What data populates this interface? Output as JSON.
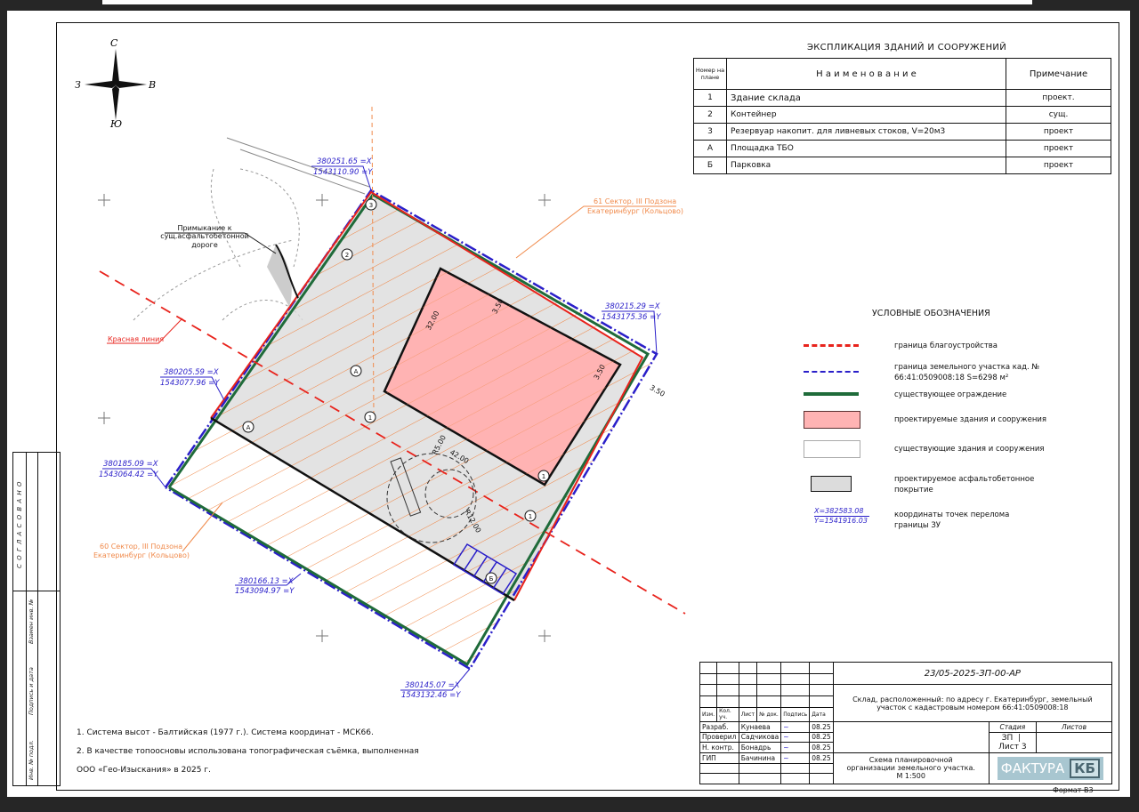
{
  "compass": {
    "north": "С",
    "south": "Ю",
    "west": "З",
    "east": "В"
  },
  "explication": {
    "title": "ЭКСПЛИКАЦИЯ ЗДАНИЙ И СООРУЖЕНИЙ",
    "headers": [
      "Номер на плане",
      "Н а и м е н о в а н и е",
      "Примечание"
    ],
    "rows": [
      {
        "num": "1",
        "name": "Здание склада",
        "note": "проект."
      },
      {
        "num": "2",
        "name": "Контейнер",
        "note": "сущ."
      },
      {
        "num": "3",
        "name": "Резервуар накопит. для ливневых стоков, V=20м3",
        "note": "проект"
      },
      {
        "num": "А",
        "name": "Площадка ТБО",
        "note": "проект"
      },
      {
        "num": "Б",
        "name": "Парковка",
        "note": "проект"
      }
    ]
  },
  "legend": {
    "title": "УСЛОВНЫЕ ОБОЗНАЧЕНИЯ",
    "items": [
      {
        "label": "граница благоустройства",
        "color": "#e8231c"
      },
      {
        "label": "граница земельного участка кад. № 66:41:0509008:18 S=6298 м²",
        "color": "#2a1fc9"
      },
      {
        "label": "существующее ограждение",
        "color": "#1f6b3a"
      },
      {
        "label": "проектируемые здания и сооружения",
        "color": "#ffb3b3"
      },
      {
        "label": "существующие здания и сооружения",
        "color": "#ffffff"
      },
      {
        "label": "проектируемое асфальтобетонное покрытие",
        "color": "#d9d9d9"
      },
      {
        "label": "координаты точек перелома границы ЗУ",
        "sample_x": "X=382583.08",
        "sample_y": "Y=1541916.03"
      }
    ]
  },
  "plan": {
    "coords": [
      {
        "x": "380251.65 =X",
        "y": "1543110.90 =Y"
      },
      {
        "x": "380215.29 =X",
        "y": "1543175.36 =Y"
      },
      {
        "x": "380205.59 =X",
        "y": "1543077.96 =Y"
      },
      {
        "x": "380185.09 =X",
        "y": "1543064.42 =Y"
      },
      {
        "x": "380166.13 =X",
        "y": "1543094.97 =Y"
      },
      {
        "x": "380145.07 =X",
        "y": "1543132.46 =Y"
      }
    ],
    "zone61": [
      "61 Сектор, III Подзона",
      "Екатеринбург (Кольцово)"
    ],
    "zone60": [
      "60 Сектор, III Подзона",
      "Екатеринбург (Кольцово)"
    ],
    "red_line": "Красная линия",
    "junction": [
      "Примыкание к",
      "сущ.асфальтобетонной",
      "дороге"
    ],
    "dims": [
      "32.00",
      "3.50",
      "3.50",
      "3.50",
      "42.00",
      "R5.00",
      "R12.00"
    ],
    "markers": [
      "1",
      "2",
      "3",
      "А",
      "Б",
      "1",
      "А",
      "1"
    ]
  },
  "notes": [
    "1. Система высот - Балтийская (1977 г.). Система координат - МСК66.",
    "2. В качестве топоосновы использована топографическая съёмка, выполненная",
    "ООО «Гео-Изыскания» в 2025 г."
  ],
  "stamp": {
    "code": "23/05-2025-ЗП-00-АР",
    "object": "Склад, расположенный: по адресу г. Екатеринбург, земельный участок с кадастровым номером 66:41:0509008:18",
    "sheet_title": "Схема планировочной организации земельного участка. М 1:500",
    "cols": [
      "Изм.",
      "Кол. уч.",
      "Лист",
      "№ док.",
      "Подпись",
      "Дата"
    ],
    "people": [
      {
        "role": "Разраб.",
        "name": "Кунаева",
        "date": "08.25"
      },
      {
        "role": "Проверил",
        "name": "Садчикова",
        "date": "08.25"
      },
      {
        "role": "Н. контр.",
        "name": "Бонадрь",
        "date": "08.25"
      },
      {
        "role": "ГИП",
        "name": "Бачинина",
        "date": "08.25"
      }
    ],
    "stage_label": "Стадия",
    "sheet_label": "Лист",
    "sheets_label": "Листов",
    "stage": "ЗП",
    "sheet": "3",
    "sheets": "",
    "logo": "ФАКТУРА КБ",
    "format": "Формат В3"
  },
  "side": {
    "agreed": "С О Г Л А С О В А Н О",
    "inv_sub": "Взамен инв. №",
    "sign_date": "Подпись и дата",
    "inv_orig": "Инв. № подл."
  }
}
